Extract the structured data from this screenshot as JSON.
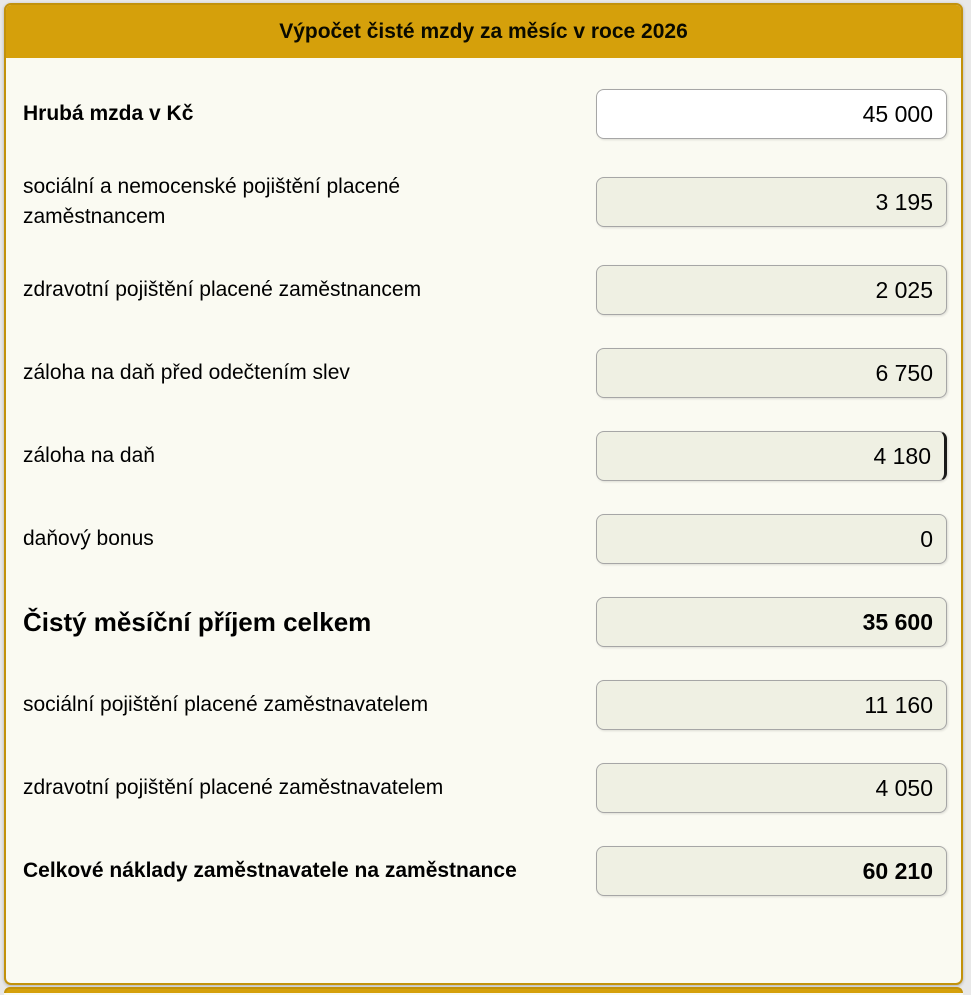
{
  "header": {
    "title": "Výpočet čisté mzdy za měsíc v roce 2026"
  },
  "colors": {
    "accent_gold": "#D5A00B",
    "gold_border": "#C2920C",
    "card_background": "#FAFAF2",
    "readonly_field_background": "#EFF0E3",
    "editable_field_background": "#FFFFFF",
    "outer_background": "#E8E8E8"
  },
  "rows": [
    {
      "label": "Hrubá mzda v Kč",
      "value": "45 000"
    },
    {
      "label": "sociální a nemocenské pojištění placené zaměstnancem",
      "value": "3 195"
    },
    {
      "label": "zdravotní pojištění placené zaměstnancem",
      "value": "2 025"
    },
    {
      "label": "záloha na daň před odečtením slev",
      "value": "6 750"
    },
    {
      "label": "záloha na daň",
      "value": "4 180"
    },
    {
      "label": "daňový bonus",
      "value": "0"
    },
    {
      "label": "Čistý měsíční příjem celkem",
      "value": "35 600"
    },
    {
      "label": "sociální pojištění placené zaměstnavatelem",
      "value": "11 160"
    },
    {
      "label": "zdravotní pojištění placené zaměstnavatelem",
      "value": "4 050"
    },
    {
      "label": "Celkové náklady zaměstnavatele na zaměstnance",
      "value": "60 210"
    }
  ]
}
